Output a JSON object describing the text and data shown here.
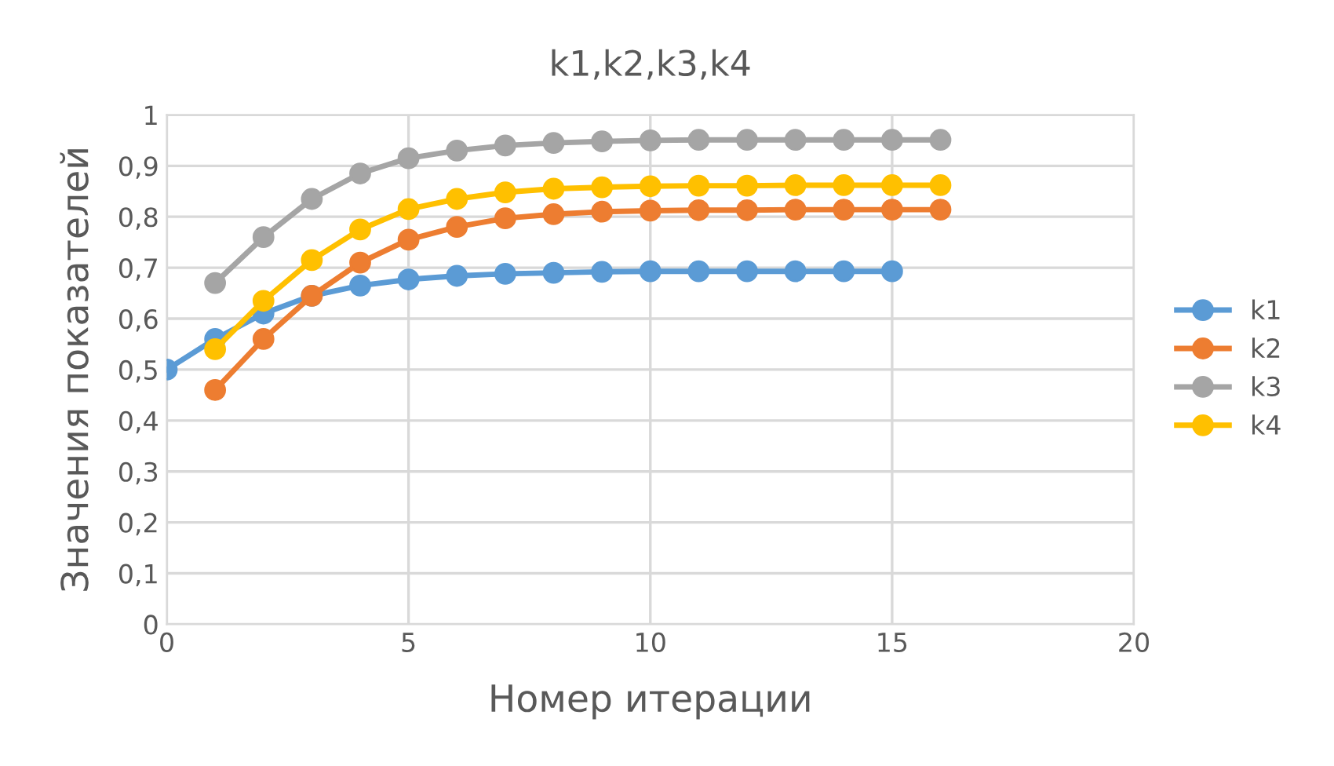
{
  "chart_data": {
    "type": "line",
    "title": "k1,k2,k3,k4",
    "xlabel": "Номер итерации",
    "ylabel": "Значения показателей",
    "xlim": [
      0,
      20
    ],
    "xticks": [
      0,
      5,
      10,
      15,
      20
    ],
    "ylim": [
      0,
      1
    ],
    "yticks": [
      0,
      {
        "value": 0.1,
        "label": "0,1"
      },
      {
        "value": 0.2,
        "label": "0,2"
      },
      {
        "value": 0.3,
        "label": "0,3"
      },
      {
        "value": 0.4,
        "label": "0,4"
      },
      {
        "value": 0.5,
        "label": "0,5"
      },
      {
        "value": 0.6,
        "label": "0,6"
      },
      {
        "value": 0.7,
        "label": "0,7"
      },
      {
        "value": 0.8,
        "label": "0,8"
      },
      {
        "value": 0.9,
        "label": "0,9"
      },
      1
    ],
    "grid": true,
    "legend": "right",
    "marker": "circle",
    "series": [
      {
        "name": "k1",
        "color": "#5b9bd5",
        "x": [
          0,
          1,
          2,
          3,
          4,
          5,
          6,
          7,
          8,
          9,
          10,
          11,
          12,
          13,
          14,
          15
        ],
        "values": [
          0.5,
          0.56,
          0.61,
          0.645,
          0.665,
          0.677,
          0.684,
          0.688,
          0.69,
          0.692,
          0.693,
          0.693,
          0.693,
          0.693,
          0.693,
          0.693
        ]
      },
      {
        "name": "k2",
        "color": "#ed7d31",
        "x": [
          1,
          2,
          3,
          4,
          5,
          6,
          7,
          8,
          9,
          10,
          11,
          12,
          13,
          14,
          15,
          16
        ],
        "values": [
          0.46,
          0.56,
          0.645,
          0.71,
          0.755,
          0.78,
          0.797,
          0.805,
          0.81,
          0.812,
          0.813,
          0.813,
          0.814,
          0.814,
          0.814,
          0.814
        ]
      },
      {
        "name": "k3",
        "color": "#a5a5a5",
        "x": [
          1,
          2,
          3,
          4,
          5,
          6,
          7,
          8,
          9,
          10,
          11,
          12,
          13,
          14,
          15,
          16
        ],
        "values": [
          0.67,
          0.76,
          0.835,
          0.885,
          0.915,
          0.93,
          0.94,
          0.945,
          0.948,
          0.95,
          0.951,
          0.951,
          0.951,
          0.951,
          0.951,
          0.951
        ]
      },
      {
        "name": "k4",
        "color": "#ffc000",
        "x": [
          1,
          2,
          3,
          4,
          5,
          6,
          7,
          8,
          9,
          10,
          11,
          12,
          13,
          14,
          15,
          16
        ],
        "values": [
          0.54,
          0.635,
          0.715,
          0.775,
          0.815,
          0.835,
          0.848,
          0.855,
          0.858,
          0.86,
          0.861,
          0.861,
          0.862,
          0.862,
          0.862,
          0.862
        ]
      }
    ]
  }
}
